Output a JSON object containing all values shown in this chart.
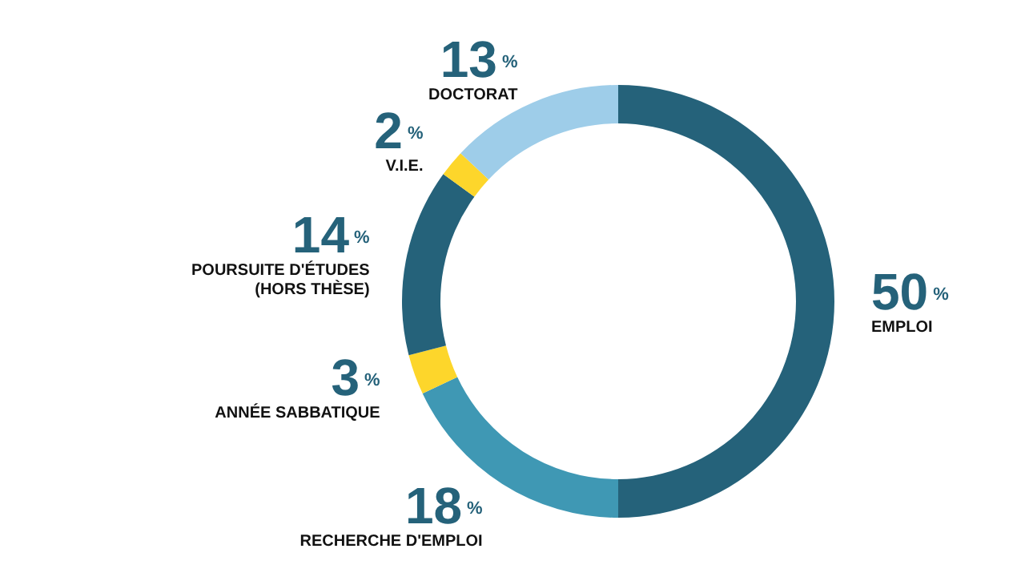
{
  "chart_data": {
    "type": "donut",
    "categories": [
      "EMPLOI",
      "RECHERCHE D'EMPLOI",
      "ANNÉE SABBATIQUE",
      "POURSUITE D'ÉTUDES (HORS THÈSE)",
      "V.I.E.",
      "DOCTORAT"
    ],
    "values": [
      50,
      18,
      3,
      14,
      2,
      13
    ],
    "value_labels": [
      "50$^{%}$",
      "18$^{%}$",
      "3$^{%}$",
      "14$^{%}$",
      "2$^{%}$",
      "13$^{%}$"
    ],
    "colors": [
      "#25627a",
      "#3f98b4",
      "#fdd62b",
      "#25627a",
      "#fdd62b",
      "#9ecde9"
    ]
  }
}
